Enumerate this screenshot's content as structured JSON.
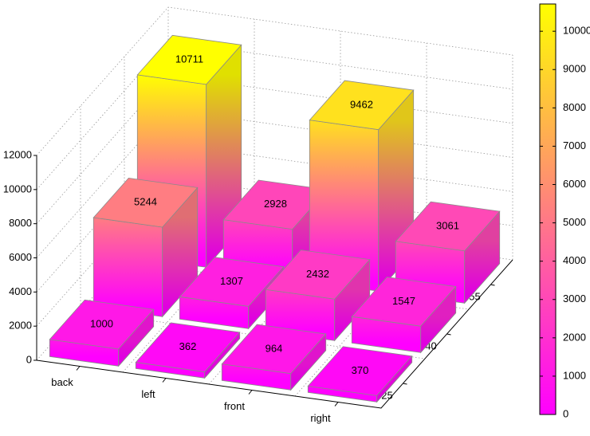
{
  "chart_data": {
    "type": "bar3d",
    "categories": [
      "back",
      "left",
      "front",
      "right"
    ],
    "series": [
      {
        "name": "25",
        "values": [
          1000,
          362,
          964,
          370
        ]
      },
      {
        "name": "40",
        "values": [
          5244,
          1307,
          2432,
          1547
        ]
      },
      {
        "name": "55",
        "values": [
          10711,
          2928,
          9462,
          3061
        ]
      }
    ],
    "zlim": [
      0,
      12000
    ],
    "zticks": [
      0,
      2000,
      4000,
      6000,
      8000,
      10000,
      12000
    ],
    "grid": true,
    "colormap": "spring",
    "colorbar": {
      "clim": [
        0,
        10711
      ],
      "ticks": [
        0,
        1000,
        2000,
        3000,
        4000,
        5000,
        6000,
        7000,
        8000,
        9000,
        10000
      ]
    }
  }
}
